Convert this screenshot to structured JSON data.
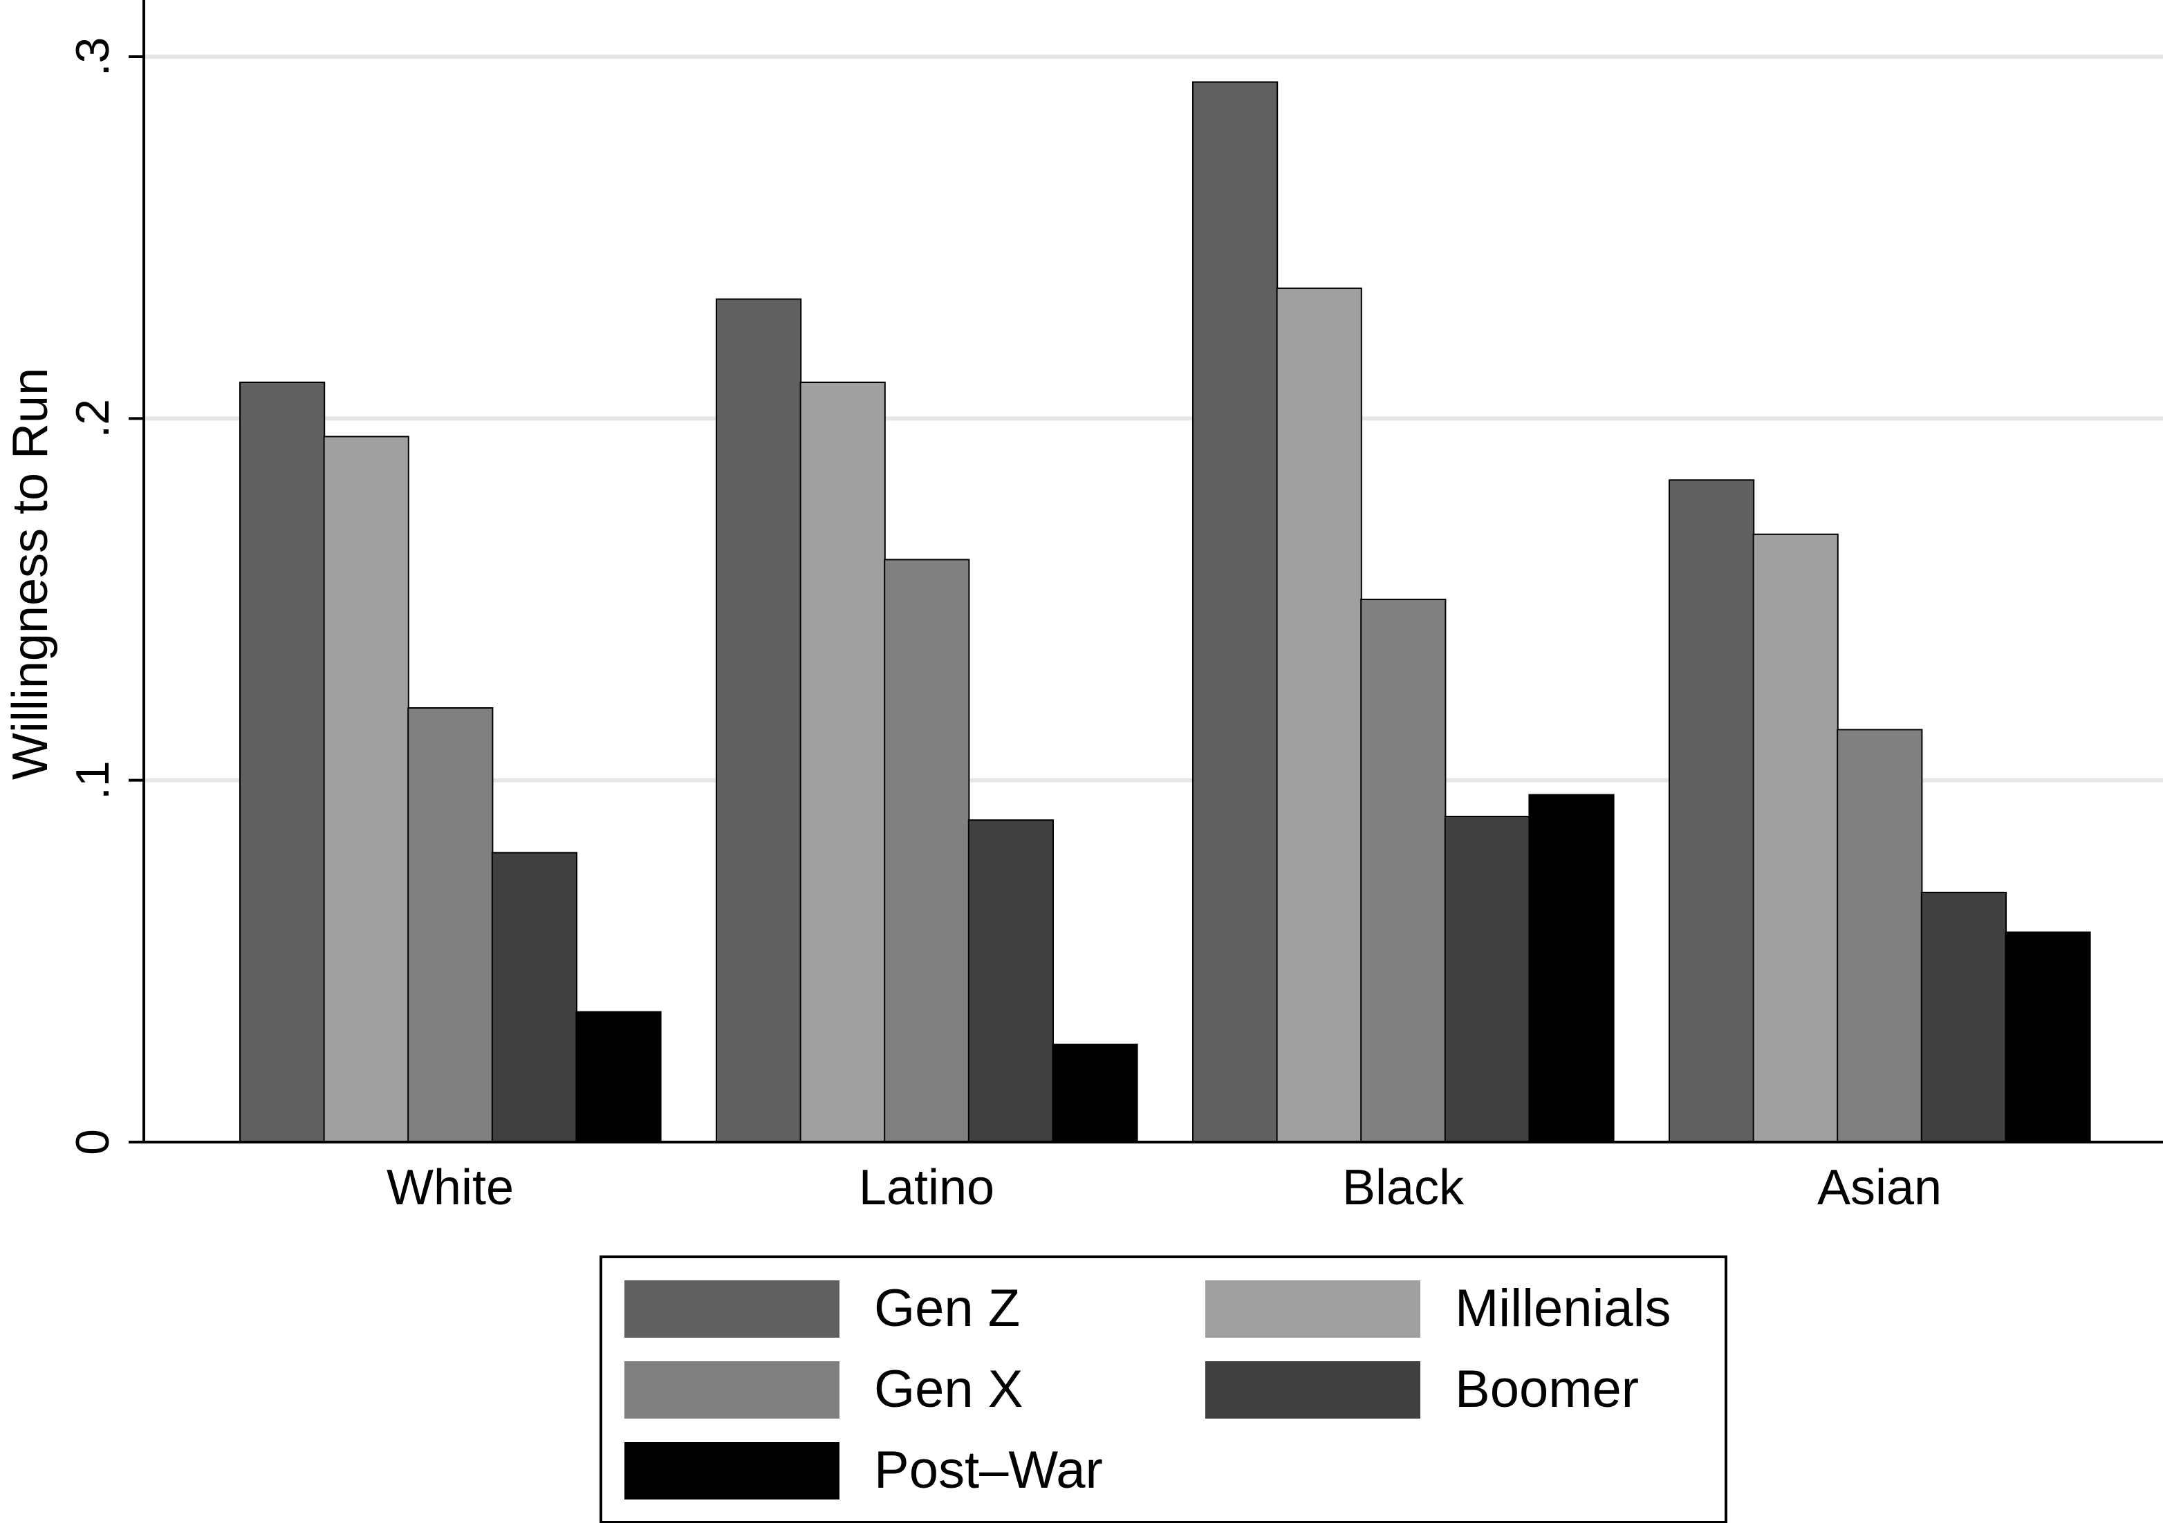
{
  "chart_data": {
    "type": "bar",
    "title": "",
    "xlabel": "",
    "ylabel": "Willingness to Run",
    "ylim": [
      0,
      0.3
    ],
    "yticks": [
      {
        "value": 0,
        "label": "0"
      },
      {
        "value": 0.1,
        "label": ".1"
      },
      {
        "value": 0.2,
        "label": ".2"
      },
      {
        "value": 0.3,
        "label": ".3"
      }
    ],
    "grid": true,
    "legend_position": "bottom",
    "categories": [
      "White",
      "Latino",
      "Black",
      "Asian"
    ],
    "series": [
      {
        "name": "Gen Z",
        "color": "#606060",
        "values": [
          0.21,
          0.233,
          0.293,
          0.183
        ]
      },
      {
        "name": "Millenials",
        "color": "#a0a0a0",
        "values": [
          0.195,
          0.21,
          0.236,
          0.168
        ]
      },
      {
        "name": "Gen X",
        "color": "#808080",
        "values": [
          0.12,
          0.161,
          0.15,
          0.114
        ]
      },
      {
        "name": "Boomer",
        "color": "#404040",
        "values": [
          0.08,
          0.089,
          0.09,
          0.069
        ]
      },
      {
        "name": "Post–War",
        "color": "#000000",
        "values": [
          0.036,
          0.027,
          0.096,
          0.058
        ]
      }
    ]
  }
}
